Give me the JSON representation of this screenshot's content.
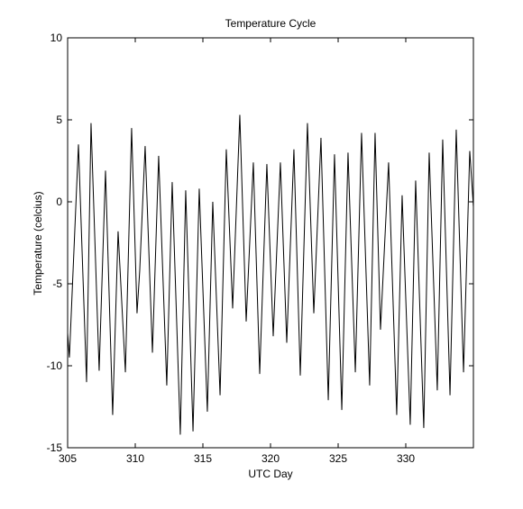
{
  "chart_data": {
    "type": "line",
    "title": "Temperature Cycle",
    "x_label": "UTC Day",
    "y_label": "Temperature (celcius)",
    "color": "#000000",
    "xlim": [
      305,
      335
    ],
    "ylim": [
      -15,
      10
    ],
    "xticks": [
      305,
      310,
      315,
      320,
      325,
      330
    ],
    "yticks": [
      -15,
      -10,
      -5,
      0,
      5,
      10
    ],
    "x": [
      305,
      305.13,
      305.8,
      306.4,
      306.73,
      307.33,
      307.8,
      308.33,
      308.73,
      309.27,
      309.73,
      310.13,
      310.33,
      310.73,
      311.27,
      311.73,
      312.33,
      312.73,
      313.33,
      313.73,
      314.27,
      314.73,
      315.33,
      315.73,
      316.27,
      316.73,
      317.2,
      317.73,
      318.2,
      318.73,
      319.2,
      319.73,
      320.2,
      320.73,
      321.2,
      321.73,
      322.2,
      322.73,
      323.2,
      323.73,
      324.27,
      324.73,
      325.27,
      325.73,
      326.27,
      326.73,
      327.33,
      327.73,
      328.13,
      328.73,
      329.33,
      329.73,
      330.33,
      330.73,
      331.33,
      331.73,
      332.33,
      332.73,
      333.27,
      333.73,
      334.27,
      334.73,
      335
    ],
    "values": [
      -8,
      -9.5,
      3.5,
      -11,
      4.8,
      -10.3,
      1.9,
      -13,
      -1.8,
      -10.4,
      4.5,
      -6.8,
      -4.2,
      3.4,
      -9.2,
      2.8,
      -11.2,
      1.2,
      -14.2,
      0.7,
      -14,
      0.8,
      -12.8,
      0,
      -11.8,
      3.2,
      -6.5,
      5.3,
      -7.3,
      2.4,
      -10.5,
      2.3,
      -8.2,
      2.4,
      -8.6,
      3.2,
      -10.6,
      4.8,
      -6.8,
      3.9,
      -12.1,
      2.9,
      -12.7,
      3.0,
      -10.4,
      4.2,
      -11.2,
      4.2,
      -7.8,
      2.4,
      -13,
      0.4,
      -13.6,
      1.3,
      -13.8,
      3.0,
      -11.5,
      3.8,
      -11.8,
      4.4,
      -10.4,
      3.1,
      -0.3
    ]
  }
}
